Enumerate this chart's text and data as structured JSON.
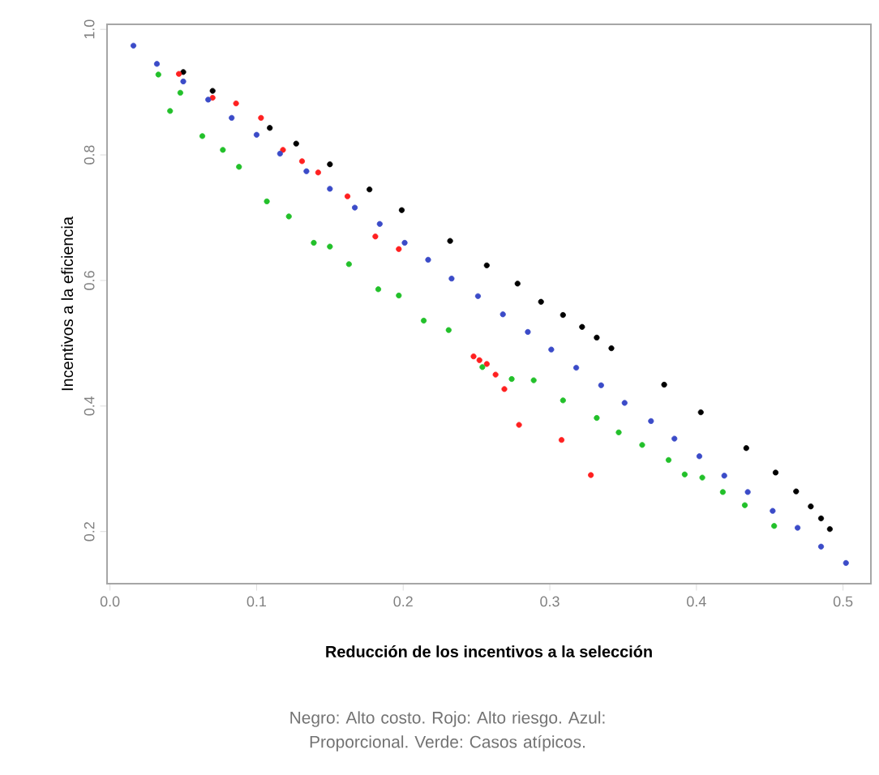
{
  "chart_data": {
    "type": "scatter",
    "xlabel": "Reducción de los incentivos a la selección",
    "ylabel": "Incentivos a la eficiencia",
    "annotations": [
      "Negro: Alto costo. Rojo: Alto riesgo. Azul: Proporcional. Verde: Casos atípicos."
    ],
    "xlim": [
      -0.002,
      0.519
    ],
    "ylim": [
      0.117,
      1.008
    ],
    "xticks": [
      {
        "value": 0,
        "label": "0.0"
      },
      0.1,
      0.2,
      0.3,
      0.4,
      0.5
    ],
    "yticks": [
      0.2,
      0.4,
      0.6,
      0.8,
      {
        "value": 1,
        "label": "1.0"
      }
    ],
    "marker": "circle",
    "series": [
      {
        "color": "#000000",
        "x": [
          0.05,
          0.07,
          0.109,
          0.127,
          0.15,
          0.177,
          0.199,
          0.232,
          0.257,
          0.278,
          0.294,
          0.309,
          0.322,
          0.332,
          0.342,
          0.378,
          0.403,
          0.434,
          0.454,
          0.468,
          0.478,
          0.485,
          0.491
        ],
        "values": [
          0.932,
          0.902,
          0.843,
          0.818,
          0.785,
          0.745,
          0.712,
          0.663,
          0.624,
          0.595,
          0.566,
          0.545,
          0.526,
          0.509,
          0.492,
          0.434,
          0.39,
          0.333,
          0.294,
          0.264,
          0.24,
          0.221,
          0.204
        ]
      },
      {
        "color": "#ff2020",
        "x": [
          0.047,
          0.07,
          0.086,
          0.103,
          0.118,
          0.131,
          0.142,
          0.162,
          0.181,
          0.197,
          0.248,
          0.252,
          0.257,
          0.263,
          0.269,
          0.279,
          0.308,
          0.328
        ],
        "values": [
          0.929,
          0.891,
          0.882,
          0.859,
          0.808,
          0.79,
          0.772,
          0.734,
          0.67,
          0.65,
          0.479,
          0.473,
          0.467,
          0.45,
          0.427,
          0.37,
          0.346,
          0.29
        ]
      },
      {
        "color": "#3b4bc8",
        "x": [
          0.016,
          0.032,
          0.05,
          0.067,
          0.083,
          0.1,
          0.116,
          0.134,
          0.15,
          0.167,
          0.184,
          0.201,
          0.217,
          0.233,
          0.251,
          0.268,
          0.285,
          0.301,
          0.318,
          0.335,
          0.351,
          0.369,
          0.385,
          0.402,
          0.419,
          0.435,
          0.452,
          0.469,
          0.485,
          0.502
        ],
        "values": [
          0.974,
          0.945,
          0.917,
          0.888,
          0.859,
          0.832,
          0.802,
          0.774,
          0.746,
          0.716,
          0.69,
          0.66,
          0.633,
          0.603,
          0.575,
          0.546,
          0.518,
          0.49,
          0.461,
          0.433,
          0.405,
          0.376,
          0.348,
          0.32,
          0.289,
          0.263,
          0.233,
          0.206,
          0.176,
          0.15
        ]
      },
      {
        "color": "#22c02a",
        "x": [
          0.033,
          0.041,
          0.048,
          0.063,
          0.077,
          0.088,
          0.107,
          0.122,
          0.139,
          0.15,
          0.163,
          0.183,
          0.197,
          0.214,
          0.231,
          0.254,
          0.274,
          0.289,
          0.309,
          0.332,
          0.347,
          0.363,
          0.381,
          0.392,
          0.404,
          0.418,
          0.433,
          0.453
        ],
        "values": [
          0.928,
          0.87,
          0.899,
          0.83,
          0.808,
          0.781,
          0.726,
          0.702,
          0.66,
          0.654,
          0.626,
          0.586,
          0.576,
          0.536,
          0.521,
          0.462,
          0.443,
          0.441,
          0.409,
          0.381,
          0.358,
          0.338,
          0.314,
          0.291,
          0.286,
          0.263,
          0.242,
          0.209
        ]
      }
    ]
  }
}
